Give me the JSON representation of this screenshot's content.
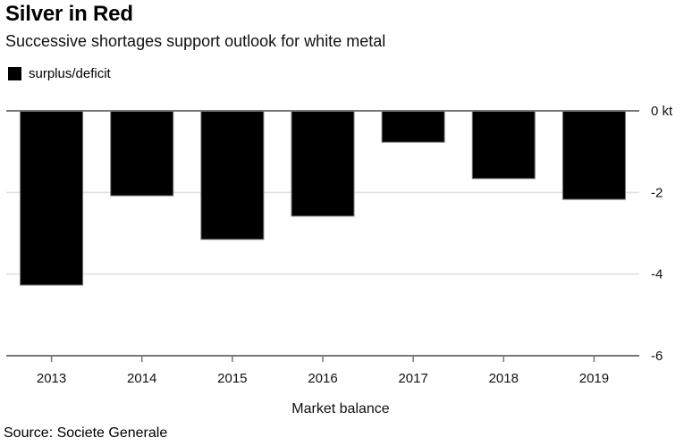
{
  "header": {
    "title": "Silver in Red",
    "subtitle": "Successive shortages support outlook for white metal"
  },
  "legend": {
    "items": [
      {
        "label": "surplus/deficit",
        "color": "#000000"
      }
    ]
  },
  "footer": {
    "source": "Source: Societe Generale"
  },
  "chart_data": {
    "type": "bar",
    "title": "Silver in Red",
    "subtitle": "Successive shortages support outlook for white metal",
    "xlabel": "Market balance",
    "ylabel": "",
    "unit": "kt",
    "categories": [
      "2013",
      "2014",
      "2015",
      "2016",
      "2017",
      "2018",
      "2019"
    ],
    "series": [
      {
        "name": "surplus/deficit",
        "color": "#000000",
        "values": [
          -4.27,
          -2.08,
          -3.15,
          -2.58,
          -0.77,
          -1.66,
          -2.17
        ]
      }
    ],
    "ylim": [
      -6,
      0
    ],
    "yticks": [
      0,
      -2,
      -4,
      -6
    ],
    "ytick_labels": [
      "0 kt",
      "-2",
      "-4",
      "-6"
    ],
    "y_axis_side": "right",
    "grid": true,
    "legend_position": "top-left",
    "source": "Source: Societe Generale"
  }
}
